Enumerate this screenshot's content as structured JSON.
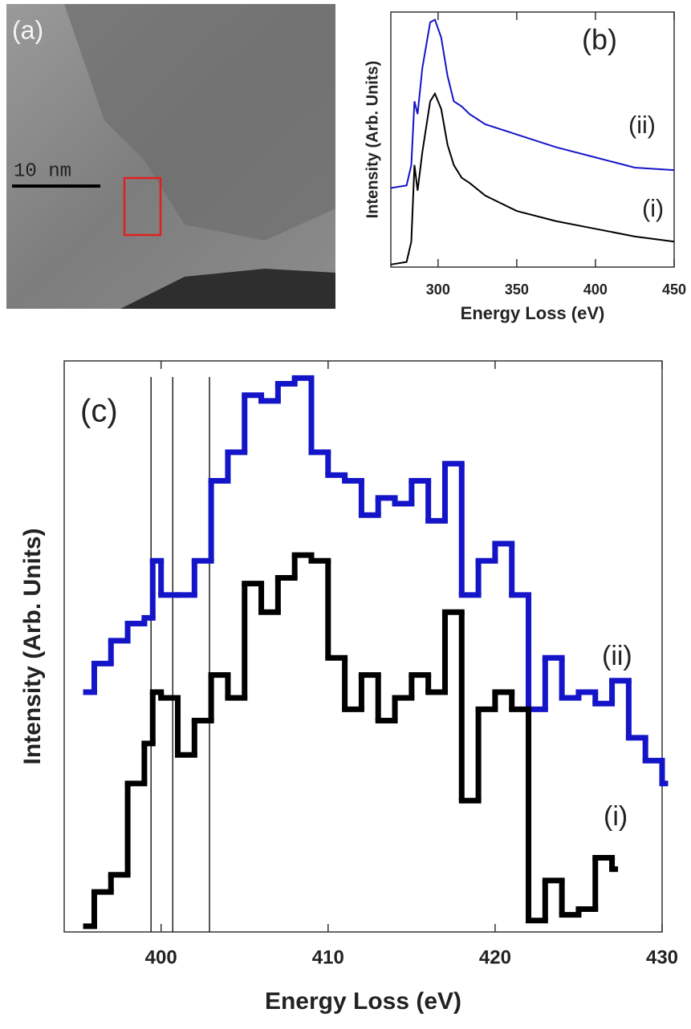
{
  "image_panel": {
    "label": "(a)",
    "scale_bar": "10 nm"
  },
  "chart_data": [
    {
      "type": "line",
      "panel_label": "(b)",
      "x_label": "Energy Loss (eV)",
      "y_label": "Intensity (Arb. Units)",
      "xlim": [
        270,
        450
      ],
      "xticks": [
        300,
        350,
        400,
        450
      ],
      "ylim": [
        0,
        100
      ],
      "x": [
        270,
        280,
        283,
        285,
        287,
        290,
        295,
        298,
        302,
        306,
        310,
        315,
        320,
        330,
        340,
        350,
        375,
        400,
        425,
        450
      ],
      "series": [
        {
          "name": "(ii)",
          "color": "#1414c8",
          "values": [
            31,
            32,
            40,
            65,
            60,
            78,
            96,
            97,
            90,
            75,
            65,
            63,
            60,
            56,
            54,
            52,
            47,
            43,
            39,
            38
          ]
        },
        {
          "name": "(i)",
          "color": "#000000",
          "values": [
            1,
            2,
            10,
            40,
            30,
            45,
            65,
            68,
            62,
            48,
            40,
            35,
            33,
            28,
            25,
            22,
            18,
            15,
            12,
            10
          ]
        }
      ]
    },
    {
      "type": "step",
      "panel_label": "(c)",
      "x_label": "Energy Loss (eV)",
      "y_label": "Intensity (Arb. Units)",
      "xlim": [
        394.2,
        430
      ],
      "xticks": [
        400,
        410,
        420,
        430
      ],
      "ylim": [
        0,
        100
      ],
      "reference_lines": [
        399.4,
        400.7,
        402.9
      ],
      "series": [
        {
          "name": "(ii)",
          "color": "#1414c8",
          "x": [
            395.5,
            396,
            397,
            398,
            399,
            399.5,
            400,
            401,
            402,
            403,
            404,
            405,
            406,
            407,
            408,
            409,
            410,
            411,
            412,
            413,
            414,
            415,
            416,
            417,
            418,
            419,
            420,
            421,
            422,
            423,
            424,
            425,
            426,
            427,
            428,
            429,
            430
          ],
          "values": [
            42,
            47,
            51,
            54,
            55,
            65,
            59,
            59,
            65,
            79,
            84,
            94,
            93,
            96,
            97,
            84,
            80,
            79,
            73,
            76,
            75,
            79,
            72,
            82,
            59,
            65,
            68,
            59,
            39,
            48,
            41,
            42,
            40,
            44,
            34,
            30,
            26
          ]
        },
        {
          "name": "(i)",
          "color": "#000000",
          "x": [
            395.5,
            396,
            397,
            398,
            399,
            399.5,
            400,
            401,
            402,
            403,
            404,
            405,
            406,
            407,
            408,
            409,
            410,
            411,
            412,
            413,
            414,
            415,
            416,
            417,
            418,
            419,
            420,
            421,
            422,
            423,
            424,
            425,
            426,
            427
          ],
          "values": [
            1,
            7,
            10,
            26,
            33,
            42,
            41,
            31,
            37,
            45,
            41,
            61,
            56,
            62,
            66,
            65,
            48,
            39,
            45,
            37,
            41,
            45,
            42,
            56,
            23,
            39,
            42,
            39,
            2,
            9,
            3,
            4,
            13,
            11
          ]
        }
      ]
    }
  ]
}
